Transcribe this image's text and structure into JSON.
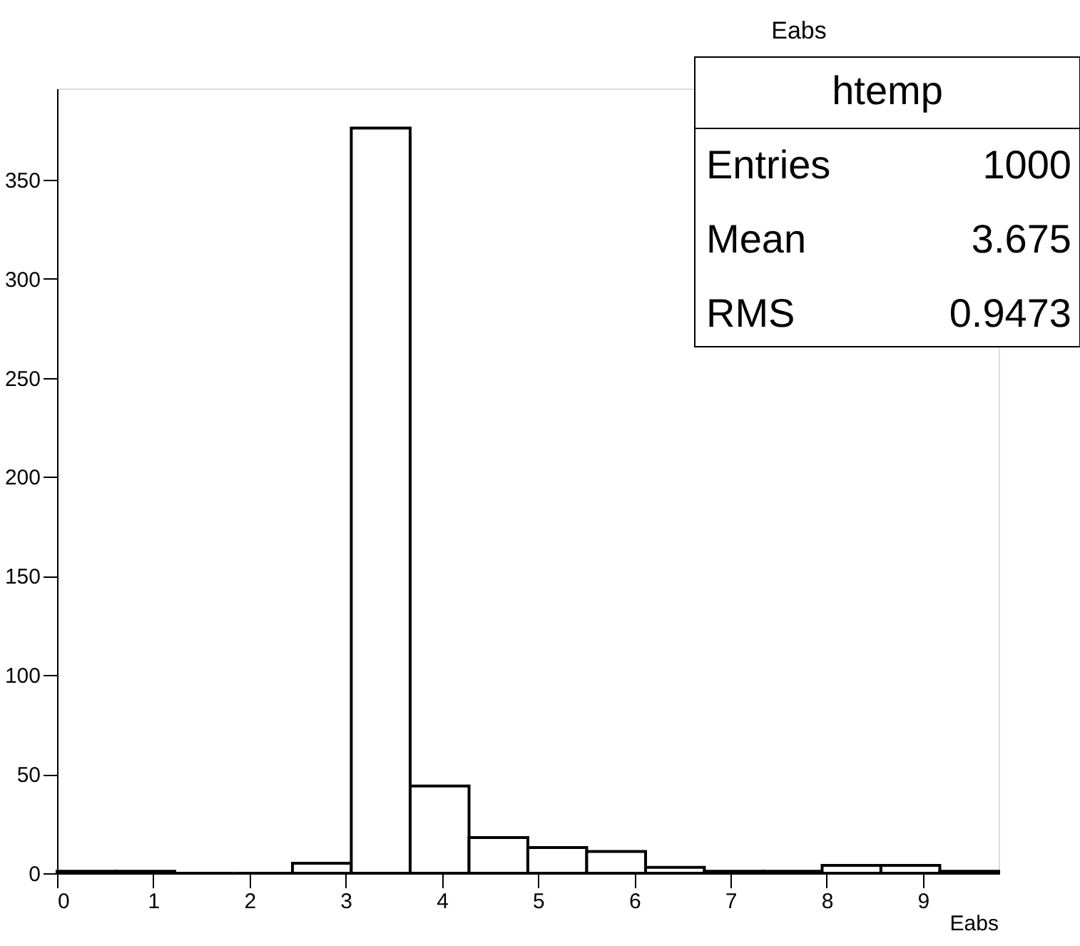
{
  "chart_data": {
    "type": "histogram",
    "title": "Eabs",
    "xlabel": "Eabs",
    "bins": [
      0,
      0.612,
      1.223,
      1.835,
      2.447,
      3.058,
      3.67,
      4.282,
      4.893,
      5.505,
      6.117,
      6.728,
      7.34,
      7.952,
      8.563,
      9.175,
      9.787
    ],
    "values": [
      1,
      1,
      0,
      0,
      5,
      376,
      44,
      18,
      13,
      11,
      3,
      1,
      1,
      4,
      4,
      1
    ],
    "color": "#000000",
    "xlim": [
      0,
      9.787
    ],
    "xticks": [
      0,
      1,
      2,
      3,
      4,
      5,
      6,
      7,
      8,
      9
    ],
    "ylim": [
      0,
      396
    ],
    "yticks": [
      0,
      50,
      100,
      150,
      200,
      250,
      300,
      350
    ],
    "grid": false,
    "annotations": [
      "htemp",
      "Entries",
      "1000",
      "Mean",
      "3.675",
      "RMS",
      "0.9473"
    ]
  }
}
